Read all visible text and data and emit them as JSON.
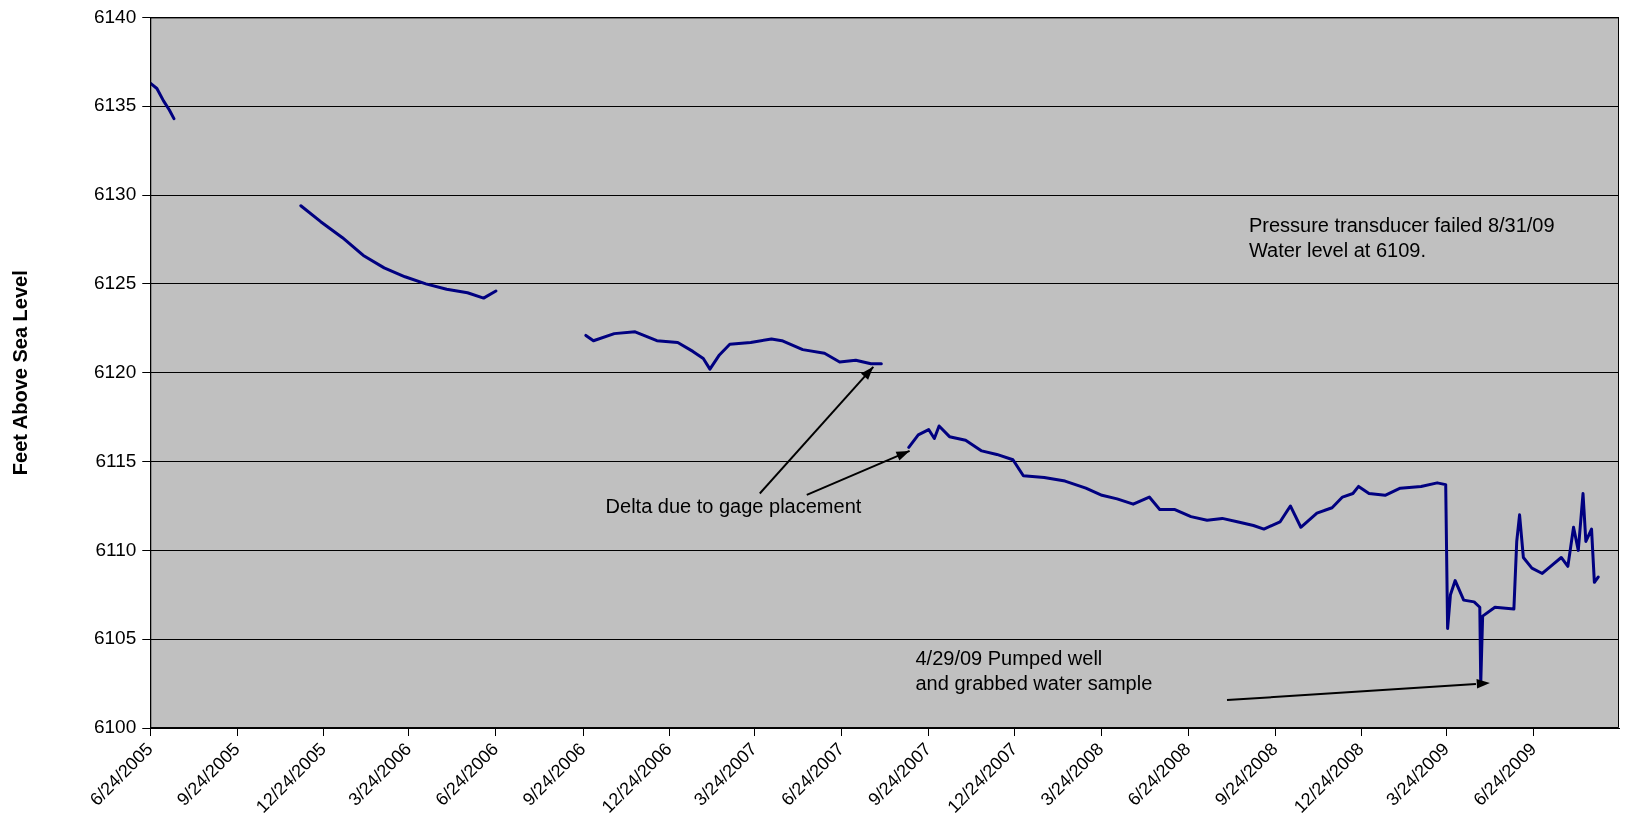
{
  "chart_data": {
    "type": "line",
    "ylabel": "Feet Above Sea Level",
    "xlim": [
      "2005-06-24",
      "2009-09-22"
    ],
    "xticks": [
      {
        "value": "2005-06-24",
        "label": "6/24/2005"
      },
      {
        "value": "2005-09-24",
        "label": "9/24/2005"
      },
      {
        "value": "2005-12-24",
        "label": "12/24/2005"
      },
      {
        "value": "2006-03-24",
        "label": "3/24/2006"
      },
      {
        "value": "2006-06-24",
        "label": "6/24/2006"
      },
      {
        "value": "2006-09-24",
        "label": "9/24/2006"
      },
      {
        "value": "2006-12-24",
        "label": "12/24/2006"
      },
      {
        "value": "2007-03-24",
        "label": "3/24/2007"
      },
      {
        "value": "2007-06-24",
        "label": "6/24/2007"
      },
      {
        "value": "2007-09-24",
        "label": "9/24/2007"
      },
      {
        "value": "2007-12-24",
        "label": "12/24/2007"
      },
      {
        "value": "2008-03-24",
        "label": "3/24/2008"
      },
      {
        "value": "2008-06-24",
        "label": "6/24/2008"
      },
      {
        "value": "2008-09-24",
        "label": "9/24/2008"
      },
      {
        "value": "2008-12-24",
        "label": "12/24/2008"
      },
      {
        "value": "2009-03-24",
        "label": "3/24/2009"
      },
      {
        "value": "2009-06-24",
        "label": "6/24/2009"
      }
    ],
    "ylim": [
      6100,
      6140
    ],
    "yticks": [
      6100,
      6105,
      6110,
      6115,
      6120,
      6125,
      6130,
      6135,
      6140
    ],
    "grid": "y",
    "legend": false,
    "marker": "none",
    "line_style": "solid",
    "annotations": [
      "Pressure transducer failed 8/31/09\nWater level at 6109.",
      {
        "text": "Delta due to gage placement",
        "x": "2007-08-05",
        "y": 6120.5
      },
      "4/29/09 Pumped well\nand grabbed water sample"
    ],
    "series": [
      {
        "color": "#000080",
        "x": [
          "2005-06-24",
          "2005-07-01",
          "2005-07-08",
          "2005-07-14",
          "2005-07-19",
          "2005-08-01",
          "2005-11-30",
          "2005-12-21",
          "2006-01-13",
          "2006-02-04",
          "2006-02-26",
          "2006-03-20",
          "2006-04-11",
          "2006-05-03",
          "2006-05-25",
          "2006-06-11",
          "2006-06-24",
          "2006-08-01",
          "2006-09-27",
          "2006-10-05",
          "2006-10-27",
          "2006-11-18",
          "2006-12-11",
          "2007-01-02",
          "2007-01-18",
          "2007-01-29",
          "2007-02-05",
          "2007-02-15",
          "2007-02-26",
          "2007-03-20",
          "2007-04-11",
          "2007-04-22",
          "2007-05-14",
          "2007-06-06",
          "2007-06-22",
          "2007-07-09",
          "2007-07-25",
          "2007-08-05",
          "2007-08-20",
          "2007-09-03",
          "2007-09-13",
          "2007-09-24",
          "2007-09-30",
          "2007-10-05",
          "2007-10-16",
          "2007-11-02",
          "2007-11-19",
          "2007-12-05",
          "2007-12-22",
          "2008-01-02",
          "2008-01-24",
          "2008-02-15",
          "2008-03-08",
          "2008-03-25",
          "2008-04-10",
          "2008-04-27",
          "2008-05-14",
          "2008-05-25",
          "2008-06-10",
          "2008-06-27",
          "2008-07-14",
          "2008-07-30",
          "2008-08-16",
          "2008-09-01",
          "2008-09-12",
          "2008-09-29",
          "2008-10-10",
          "2008-10-21",
          "2008-11-07",
          "2008-11-23",
          "2008-12-04",
          "2008-12-15",
          "2008-12-21",
          "2009-01-01",
          "2009-01-18",
          "2009-02-03",
          "2009-02-25",
          "2009-03-14",
          "2009-03-23",
          "2009-03-25",
          "2009-03-28",
          "2009-04-02",
          "2009-04-11",
          "2009-04-22",
          "2009-04-28",
          "2009-04-29",
          "2009-05-01",
          "2009-05-14",
          "2009-06-03",
          "2009-06-06",
          "2009-06-09",
          "2009-06-13",
          "2009-06-22",
          "2009-07-03",
          "2009-07-14",
          "2009-07-23",
          "2009-07-30",
          "2009-08-05",
          "2009-08-10",
          "2009-08-15",
          "2009-08-18",
          "2009-08-24",
          "2009-08-27",
          "2009-08-31"
        ],
        "values": [
          6136.3,
          6136,
          6135.3,
          6134.8,
          6134.3,
          null,
          6129.4,
          6128.5,
          6127.6,
          6126.6,
          6125.9,
          6125.4,
          6125,
          6124.7,
          6124.5,
          6124.2,
          6124.6,
          null,
          6122.1,
          6121.8,
          6122.2,
          6122.3,
          6121.8,
          6121.7,
          6121.2,
          6120.8,
          6120.2,
          6121,
          6121.6,
          6121.7,
          6121.9,
          6121.8,
          6121.3,
          6121.1,
          6120.6,
          6120.7,
          6120.5,
          6120.5,
          null,
          6115.8,
          6116.5,
          6116.8,
          6116.3,
          6117,
          6116.4,
          6116.2,
          6115.6,
          6115.4,
          6115.1,
          6114.2,
          6114.1,
          6113.9,
          6113.5,
          6113.1,
          6112.9,
          6112.6,
          6113,
          6112.3,
          6112.3,
          6111.9,
          6111.7,
          6111.8,
          6111.6,
          6111.4,
          6111.2,
          6111.6,
          6112.5,
          6111.3,
          6112.1,
          6112.4,
          6113,
          6113.2,
          6113.6,
          6113.2,
          6113.1,
          6113.5,
          6113.6,
          6113.8,
          6113.7,
          6105.6,
          6107.5,
          6108.3,
          6107.2,
          6107.1,
          6106.8,
          6102.5,
          6106.3,
          6106.8,
          6106.7,
          6110.5,
          6112,
          6109.6,
          6109,
          6108.7,
          6109.2,
          6109.6,
          6109.1,
          6111.3,
          6110,
          6113.2,
          6110.5,
          6111.2,
          6108.2,
          6108.5
        ]
      }
    ]
  }
}
